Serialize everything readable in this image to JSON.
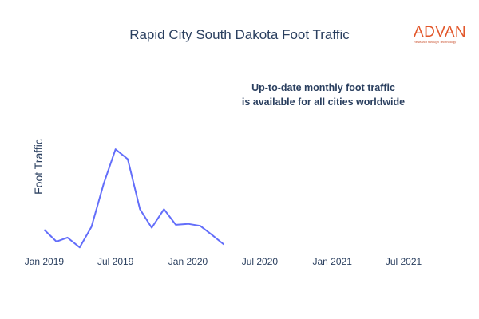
{
  "header": {
    "title": "Rapid City South Dakota Foot Traffic"
  },
  "logo": {
    "name": "ADVAN",
    "tagline": "Research through Technology",
    "color": "#e2572b"
  },
  "annotation": {
    "line1": "Up-to-date monthly foot traffic",
    "line2": "is available for all cities worldwide"
  },
  "chart_data": {
    "type": "line",
    "title": "Rapid City South Dakota Foot Traffic",
    "xlabel": "",
    "ylabel": "Foot Traffic",
    "grid": false,
    "legend": "none",
    "line_color": "#636efa",
    "x_ticks": [
      "Jan 2019",
      "Jul 2019",
      "Jan 2020",
      "Jul 2020",
      "Jan 2021",
      "Jul 2021"
    ],
    "x_range": [
      "2018-12-15",
      "2021-09-15"
    ],
    "ylim": [
      0,
      100
    ],
    "series": [
      {
        "x": [
          "2019-01",
          "2019-02",
          "2019-03",
          "2019-04",
          "2019-05",
          "2019-06",
          "2019-07",
          "2019-08",
          "2019-09",
          "2019-10",
          "2019-11",
          "2019-12",
          "2020-01",
          "2020-02",
          "2020-03",
          "2020-04"
        ],
        "values": [
          17,
          5,
          9,
          -1,
          20,
          64,
          99,
          89,
          38,
          19,
          38,
          22,
          23,
          21,
          12,
          2
        ]
      }
    ]
  }
}
